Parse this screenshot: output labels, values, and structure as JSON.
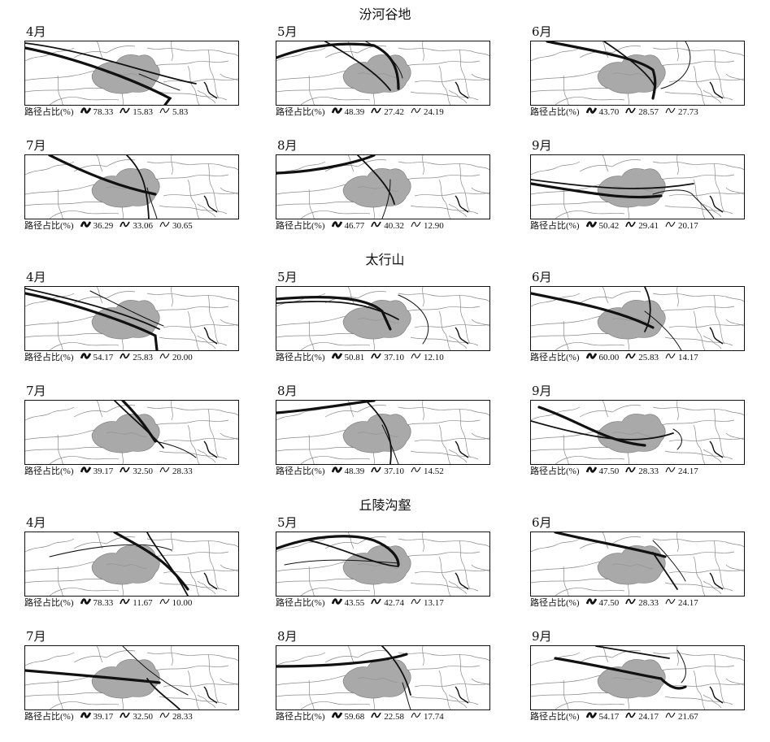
{
  "legend_label": "路径占比(%)",
  "sections": [
    {
      "title": "汾河谷地",
      "panels": [
        {
          "month": "4月",
          "values": [
            "78.33",
            "15.83",
            "5.83"
          ]
        },
        {
          "month": "5月",
          "values": [
            "48.39",
            "27.42",
            "24.19"
          ]
        },
        {
          "month": "6月",
          "values": [
            "43.70",
            "28.57",
            "27.73"
          ]
        },
        {
          "month": "7月",
          "values": [
            "36.29",
            "33.06",
            "30.65"
          ]
        },
        {
          "month": "8月",
          "values": [
            "46.77",
            "40.32",
            "12.90"
          ]
        },
        {
          "month": "9月",
          "values": [
            "50.42",
            "29.41",
            "20.17"
          ]
        }
      ]
    },
    {
      "title": "太行山",
      "panels": [
        {
          "month": "4月",
          "values": [
            "54.17",
            "25.83",
            "20.00"
          ]
        },
        {
          "month": "5月",
          "values": [
            "50.81",
            "37.10",
            "12.10"
          ]
        },
        {
          "month": "6月",
          "values": [
            "60.00",
            "25.83",
            "14.17"
          ]
        },
        {
          "month": "7月",
          "values": [
            "39.17",
            "32.50",
            "28.33"
          ]
        },
        {
          "month": "8月",
          "values": [
            "48.39",
            "37.10",
            "14.52"
          ]
        },
        {
          "month": "9月",
          "values": [
            "47.50",
            "28.33",
            "24.17"
          ]
        }
      ]
    },
    {
      "title": "丘陵沟壑",
      "panels": [
        {
          "month": "4月",
          "values": [
            "78.33",
            "11.67",
            "10.00"
          ]
        },
        {
          "month": "5月",
          "values": [
            "43.55",
            "42.74",
            "13.17"
          ]
        },
        {
          "month": "6月",
          "values": [
            "47.50",
            "28.33",
            "24.17"
          ]
        },
        {
          "month": "7月",
          "values": [
            "39.17",
            "32.50",
            "28.33"
          ]
        },
        {
          "month": "8月",
          "values": [
            "59.68",
            "22.58",
            "17.74"
          ]
        },
        {
          "month": "9月",
          "values": [
            "54.17",
            "24.17",
            "21.67"
          ]
        }
      ]
    }
  ],
  "colors": {
    "study_area": "#a9a9a9",
    "boundary": "#8a8a8a",
    "trajectory": "#111111"
  }
}
